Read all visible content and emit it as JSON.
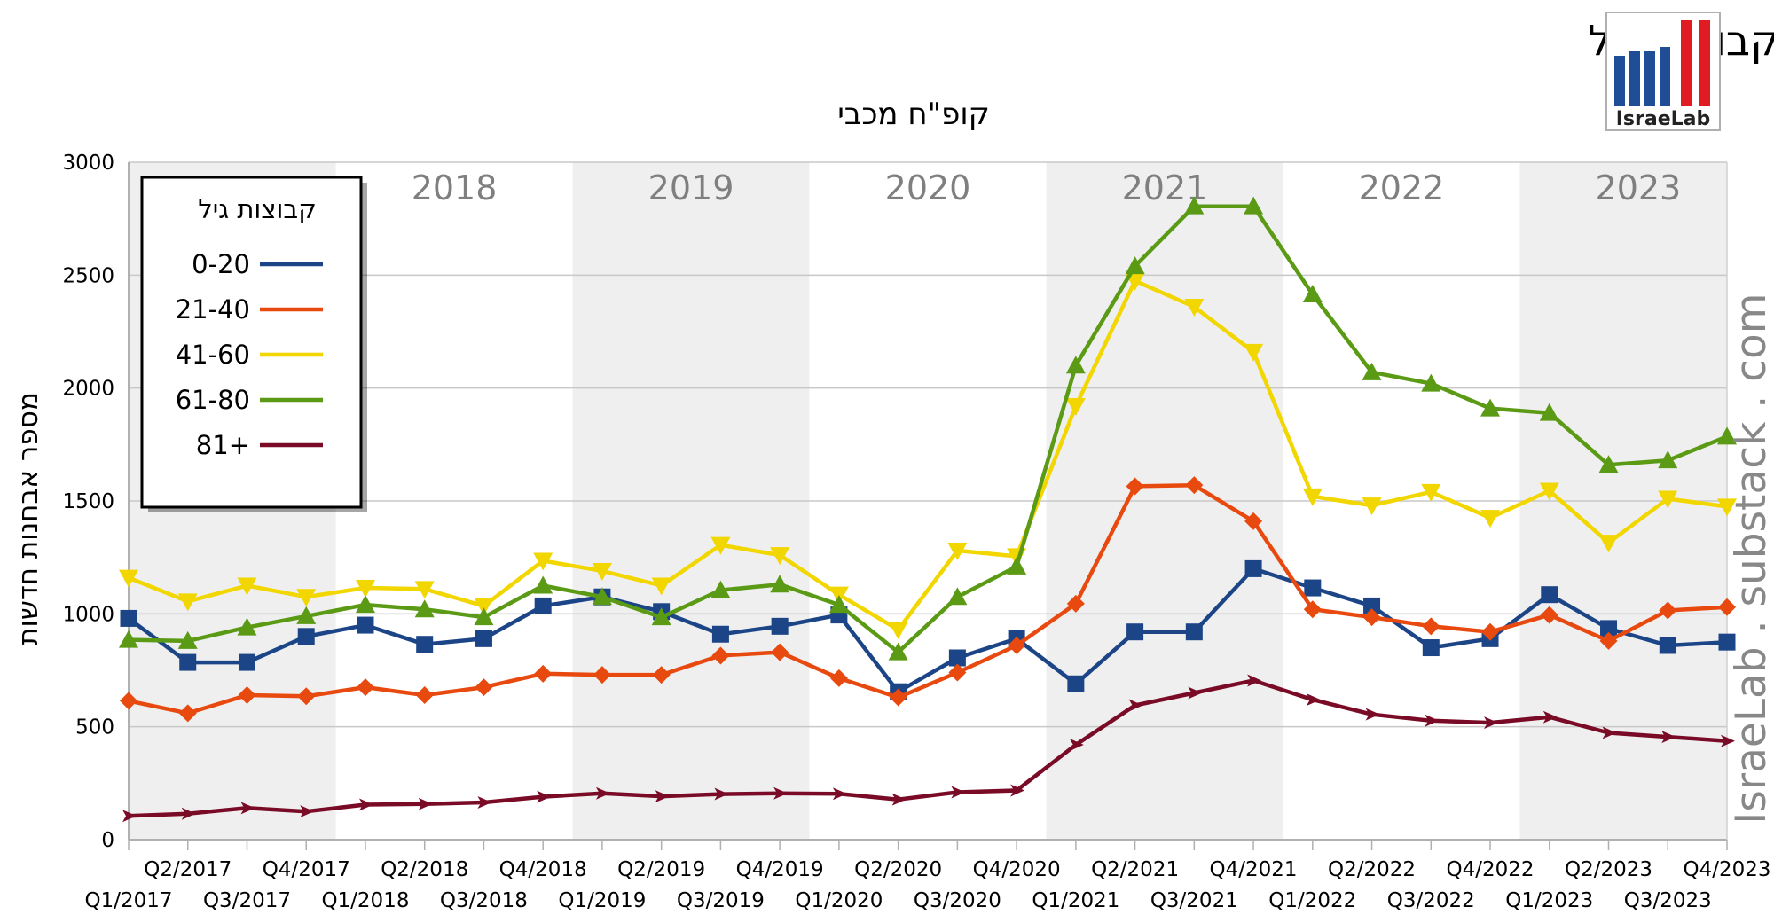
{
  "title": "אובדן שמיעה פתאומי, מס' אבחנות חדשות בכל רבעון / קבוצות גיל",
  "subtitle": "קופ\"ח מכבי",
  "logo_text": "IsraeLab",
  "watermark": "IsraeLab . substack . com",
  "colors": {
    "0-20": "#1c4587",
    "21-40": "#e8490f",
    "41-60": "#f2d600",
    "61-80": "#5b9a14",
    "81+": "#7a0b27",
    "band": "#efefef",
    "year_label": "#7f7f7f",
    "logo_blue": "#1f4e96",
    "logo_red": "#e01b22"
  },
  "chart_data": {
    "type": "line",
    "title": "אובדן שמיעה פתאומי, מס' אבחנות חדשות בכל רבעון / קבוצות גיל",
    "subtitle": "קופ\"ח מכבי",
    "xlabel": "",
    "ylabel": "מספר אבחנות חדשות",
    "ylim": [
      0,
      3000
    ],
    "yticks": [
      0,
      500,
      1000,
      1500,
      2000,
      2500,
      3000
    ],
    "grid": true,
    "legend_title": "קבוצות גיל",
    "legend_position": "top-left",
    "year_bands": [
      {
        "label": "2018",
        "shaded": false
      },
      {
        "label": "2019",
        "shaded": true
      },
      {
        "label": "2020",
        "shaded": false
      },
      {
        "label": "2021",
        "shaded": true
      },
      {
        "label": "2022",
        "shaded": false
      },
      {
        "label": "2023",
        "shaded": true
      }
    ],
    "categories": [
      "Q1/2017",
      "Q2/2017",
      "Q3/2017",
      "Q4/2017",
      "Q1/2018",
      "Q2/2018",
      "Q3/2018",
      "Q4/2018",
      "Q1/2019",
      "Q2/2019",
      "Q3/2019",
      "Q4/2019",
      "Q1/2020",
      "Q2/2020",
      "Q3/2020",
      "Q4/2020",
      "Q1/2021",
      "Q2/2021",
      "Q3/2021",
      "Q4/2021",
      "Q1/2022",
      "Q2/2022",
      "Q3/2022",
      "Q4/2022",
      "Q1/2023",
      "Q2/2023",
      "Q3/2023",
      "Q4/2023"
    ],
    "series": [
      {
        "name": "0-20",
        "marker": "square",
        "values": [
          980,
          785,
          785,
          900,
          950,
          865,
          890,
          1035,
          1075,
          1010,
          910,
          945,
          995,
          655,
          805,
          890,
          690,
          920,
          920,
          1200,
          1115,
          1035,
          850,
          890,
          1085,
          935,
          860,
          875
        ]
      },
      {
        "name": "21-40",
        "marker": "diamond",
        "values": [
          615,
          560,
          640,
          635,
          675,
          640,
          675,
          735,
          730,
          730,
          815,
          830,
          715,
          630,
          740,
          860,
          1045,
          1565,
          1570,
          1410,
          1020,
          985,
          945,
          920,
          995,
          880,
          1015,
          1030
        ]
      },
      {
        "name": "41-60",
        "marker": "triangle-down",
        "values": [
          1160,
          1055,
          1125,
          1075,
          1115,
          1110,
          1035,
          1235,
          1190,
          1125,
          1305,
          1260,
          1085,
          930,
          1280,
          1255,
          1920,
          2475,
          2360,
          2160,
          1520,
          1480,
          1540,
          1425,
          1545,
          1315,
          1510,
          1475
        ]
      },
      {
        "name": "61-80",
        "marker": "triangle-up",
        "values": [
          885,
          880,
          940,
          990,
          1040,
          1020,
          985,
          1125,
          1075,
          985,
          1105,
          1130,
          1040,
          830,
          1075,
          1210,
          2100,
          2540,
          2805,
          2805,
          2415,
          2070,
          2020,
          1910,
          1890,
          1660,
          1680,
          1785
        ]
      },
      {
        "name": "81+",
        "marker": "arrow",
        "values": [
          105,
          115,
          140,
          125,
          155,
          158,
          165,
          190,
          205,
          192,
          202,
          205,
          203,
          178,
          210,
          218,
          420,
          595,
          650,
          705,
          620,
          555,
          527,
          518,
          543,
          473,
          455,
          437
        ]
      }
    ]
  }
}
